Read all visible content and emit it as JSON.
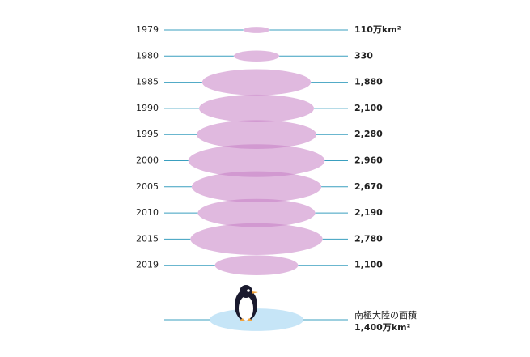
{
  "chart_data": {
    "type": "ellipse",
    "categories": [
      "1979",
      "1980",
      "1985",
      "1990",
      "1995",
      "2000",
      "2005",
      "2010",
      "2015",
      "2019"
    ],
    "values": [
      110,
      330,
      1880,
      2100,
      2280,
      2960,
      2670,
      2190,
      2780,
      1100
    ],
    "value_labels": [
      "110万km²",
      "330",
      "1,880",
      "2,100",
      "2,280",
      "2,960",
      "2,670",
      "2,190",
      "2,780",
      "1,100"
    ],
    "color": "#c77fc4",
    "reference": {
      "label": "南極大陸の面積",
      "value": 1400,
      "value_label": "1,400万km²",
      "color": "#c6e5f7"
    }
  }
}
